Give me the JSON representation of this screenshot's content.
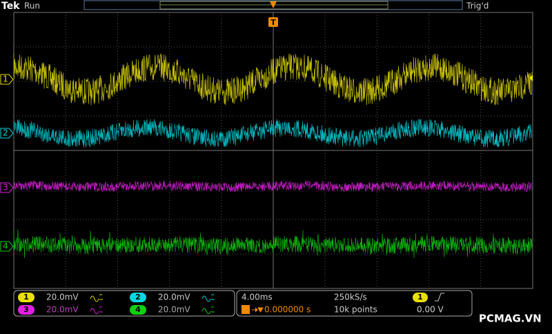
{
  "header": {
    "brand": "Tek",
    "status": "Run",
    "trigger_status": "Trig'd"
  },
  "markers": {
    "trigger": "T",
    "channels": [
      "1",
      "2",
      "3",
      "4"
    ]
  },
  "channels": [
    {
      "label": "1",
      "scale": "20.0mV"
    },
    {
      "label": "2",
      "scale": "20.0mV"
    },
    {
      "label": "3",
      "scale": "20.0mV"
    },
    {
      "label": "4",
      "scale": "20.0mV"
    }
  ],
  "timebase": {
    "scale": "4.00ms",
    "sample_rate": "250kS/s",
    "delay": "0.000000 s",
    "record_length": "10k points"
  },
  "trigger": {
    "source": "1",
    "level": "0.00 V"
  },
  "watermark": "PCMAG.VN"
}
